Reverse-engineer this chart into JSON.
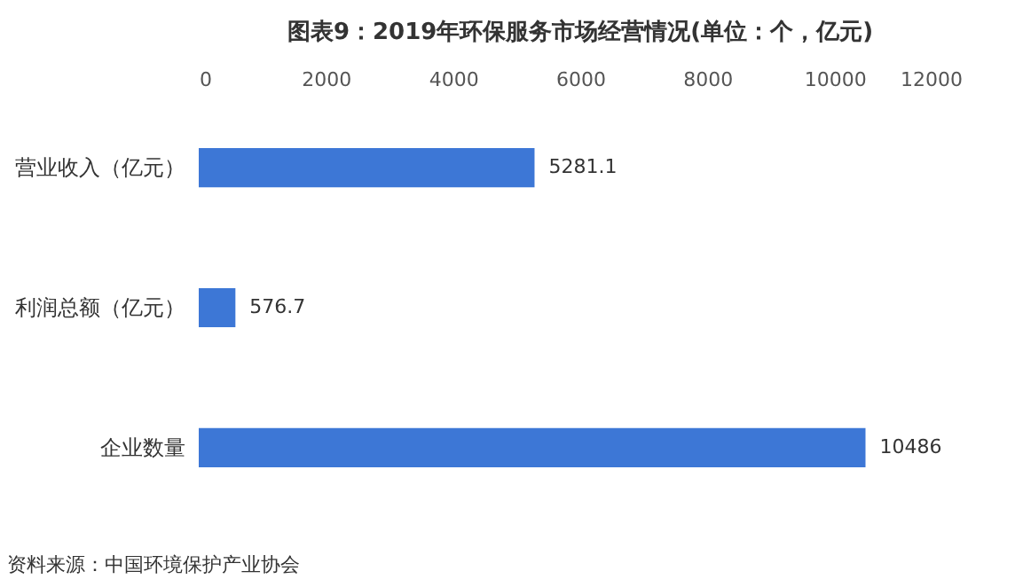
{
  "chart_data": {
    "type": "bar",
    "orientation": "horizontal",
    "title": "图表9：2019年环保服务市场经营情况(单位：个，亿元)",
    "categories": [
      "营业收入（亿元）",
      "利润总额（亿元）",
      "企业数量"
    ],
    "values": [
      5281.1,
      576.7,
      10486
    ],
    "color": "#3d77d6",
    "xlim": [
      0,
      12000
    ],
    "xticks": [
      0,
      2000,
      4000,
      6000,
      8000,
      10000,
      12000
    ],
    "data_labels": true,
    "annotations": [
      "资料来源：中国环境保护产业协会"
    ]
  }
}
